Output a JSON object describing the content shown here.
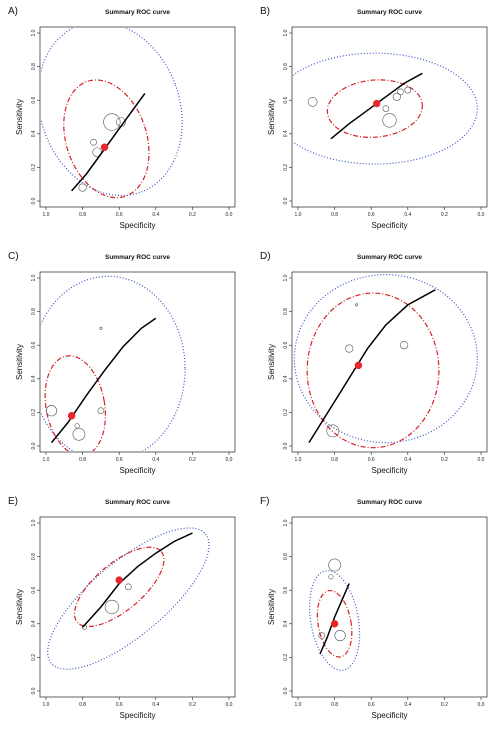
{
  "chart_data": [
    {
      "panel": "A)",
      "type": "scatter",
      "title": "Summary ROC curve",
      "xlabel": "Specificity",
      "ylabel": "Sensitivity",
      "xlim": [
        1.0,
        0.0
      ],
      "ylim": [
        0.0,
        1.0
      ],
      "xticks": [
        "1.0",
        "0.8",
        "0.6",
        "0.4",
        "0.2",
        "0.0"
      ],
      "yticks": [
        "0.0",
        "0.2",
        "0.4",
        "0.6",
        "0.8",
        "1.0"
      ],
      "curve": [
        [
          0.86,
          0.06
        ],
        [
          0.78,
          0.16
        ],
        [
          0.7,
          0.28
        ],
        [
          0.62,
          0.4
        ],
        [
          0.54,
          0.52
        ],
        [
          0.46,
          0.64
        ]
      ],
      "summary_point": [
        0.68,
        0.32
      ],
      "confidence_region": {
        "center": [
          0.67,
          0.37
        ],
        "rx": 0.22,
        "ry": 0.36,
        "angle": -18
      },
      "prediction_region": {
        "center": [
          0.65,
          0.55
        ],
        "rx": 0.38,
        "ry": 0.53,
        "angle": -20
      },
      "studies": [
        [
          0.64,
          0.47,
          0.055
        ],
        [
          0.72,
          0.29,
          0.03
        ],
        [
          0.59,
          0.47,
          0.03
        ],
        [
          0.8,
          0.08,
          0.025
        ],
        [
          0.74,
          0.35,
          0.02
        ]
      ]
    },
    {
      "panel": "B)",
      "type": "scatter",
      "title": "Summary ROC curve",
      "xlabel": "Specificity",
      "ylabel": "Sensitivity",
      "xlim": [
        1.0,
        0.0
      ],
      "ylim": [
        0.0,
        1.0
      ],
      "xticks": [
        "1.0",
        "0.8",
        "0.6",
        "0.4",
        "0.2",
        "0.0"
      ],
      "yticks": [
        "0.0",
        "0.2",
        "0.4",
        "0.6",
        "0.8",
        "1.0"
      ],
      "curve": [
        [
          0.82,
          0.37
        ],
        [
          0.72,
          0.46
        ],
        [
          0.62,
          0.54
        ],
        [
          0.52,
          0.62
        ],
        [
          0.42,
          0.7
        ],
        [
          0.32,
          0.76
        ]
      ],
      "summary_point": [
        0.57,
        0.58
      ],
      "confidence_region": {
        "center": [
          0.58,
          0.55
        ],
        "rx": 0.26,
        "ry": 0.17,
        "angle": -5
      },
      "prediction_region": {
        "center": [
          0.58,
          0.55
        ],
        "rx": 0.56,
        "ry": 0.33,
        "angle": 0
      },
      "studies": [
        [
          0.92,
          0.59,
          0.03
        ],
        [
          0.5,
          0.48,
          0.045
        ],
        [
          0.46,
          0.62,
          0.025
        ],
        [
          0.44,
          0.65,
          0.02
        ],
        [
          0.52,
          0.55,
          0.02
        ],
        [
          0.4,
          0.66,
          0.02
        ]
      ]
    },
    {
      "panel": "C)",
      "type": "scatter",
      "title": "Summary ROC curve",
      "xlabel": "Specificity",
      "ylabel": "Sensitivity",
      "xlim": [
        1.0,
        0.0
      ],
      "ylim": [
        0.0,
        1.0
      ],
      "xticks": [
        "1.0",
        "0.8",
        "0.6",
        "0.4",
        "0.2",
        "0.0"
      ],
      "yticks": [
        "0.0",
        "0.2",
        "0.4",
        "0.6",
        "0.8",
        "1.0"
      ],
      "curve": [
        [
          0.97,
          0.02
        ],
        [
          0.88,
          0.14
        ],
        [
          0.78,
          0.3
        ],
        [
          0.68,
          0.45
        ],
        [
          0.58,
          0.59
        ],
        [
          0.48,
          0.7
        ],
        [
          0.4,
          0.76
        ]
      ],
      "summary_point": [
        0.86,
        0.18
      ],
      "confidence_region": {
        "center": [
          0.84,
          0.24
        ],
        "rx": 0.16,
        "ry": 0.3,
        "angle": -10
      },
      "prediction_region": {
        "center": [
          0.66,
          0.46
        ],
        "rx": 0.42,
        "ry": 0.55,
        "angle": 0
      },
      "studies": [
        [
          0.97,
          0.21,
          0.035
        ],
        [
          0.82,
          0.07,
          0.04
        ],
        [
          0.7,
          0.21,
          0.02
        ],
        [
          0.83,
          0.12,
          0.015
        ],
        [
          0.7,
          0.7,
          0.008
        ]
      ]
    },
    {
      "panel": "D)",
      "type": "scatter",
      "title": "Summary ROC curve",
      "xlabel": "Specificity",
      "ylabel": "Sensitivity",
      "xlim": [
        1.0,
        0.0
      ],
      "ylim": [
        0.0,
        1.0
      ],
      "xticks": [
        "1.0",
        "0.8",
        "0.6",
        "0.4",
        "0.2",
        "0.0"
      ],
      "yticks": [
        "0.0",
        "0.2",
        "0.4",
        "0.6",
        "0.8",
        "1.0"
      ],
      "curve": [
        [
          0.94,
          0.02
        ],
        [
          0.86,
          0.16
        ],
        [
          0.78,
          0.3
        ],
        [
          0.7,
          0.44
        ],
        [
          0.62,
          0.58
        ],
        [
          0.52,
          0.72
        ],
        [
          0.4,
          0.84
        ],
        [
          0.25,
          0.93
        ]
      ],
      "summary_point": [
        0.67,
        0.48
      ],
      "confidence_region": {
        "center": [
          0.59,
          0.45
        ],
        "rx": 0.36,
        "ry": 0.46,
        "angle": 0
      },
      "prediction_region": {
        "center": [
          0.52,
          0.52
        ],
        "rx": 0.5,
        "ry": 0.5,
        "angle": 0
      },
      "studies": [
        [
          0.81,
          0.09,
          0.04
        ],
        [
          0.72,
          0.58,
          0.025
        ],
        [
          0.42,
          0.6,
          0.025
        ],
        [
          0.68,
          0.84,
          0.006
        ]
      ]
    },
    {
      "panel": "E)",
      "type": "scatter",
      "title": "Summary ROC curve",
      "xlabel": "Specificity",
      "ylabel": "Sensitivity",
      "xlim": [
        1.0,
        0.0
      ],
      "ylim": [
        0.0,
        1.0
      ],
      "xticks": [
        "1.0",
        "0.8",
        "0.6",
        "0.4",
        "0.2",
        "0.0"
      ],
      "yticks": [
        "0.0",
        "0.2",
        "0.4",
        "0.6",
        "0.8",
        "1.0"
      ],
      "curve": [
        [
          0.8,
          0.38
        ],
        [
          0.7,
          0.5
        ],
        [
          0.6,
          0.64
        ],
        [
          0.5,
          0.74
        ],
        [
          0.4,
          0.82
        ],
        [
          0.3,
          0.89
        ],
        [
          0.2,
          0.94
        ]
      ],
      "summary_point": [
        0.6,
        0.66
      ],
      "confidence_region": {
        "center": [
          0.6,
          0.62
        ],
        "rx": 0.3,
        "ry": 0.14,
        "angle": -40
      },
      "prediction_region": {
        "center": [
          0.55,
          0.55
        ],
        "rx": 0.55,
        "ry": 0.22,
        "angle": -40
      },
      "studies": [
        [
          0.64,
          0.5,
          0.045
        ],
        [
          0.55,
          0.62,
          0.02
        ],
        [
          0.79,
          0.38,
          0.015
        ]
      ]
    },
    {
      "panel": "F)",
      "type": "scatter",
      "title": "Summary ROC curve",
      "xlabel": "Specificity",
      "ylabel": "Sensitivity",
      "xlim": [
        1.0,
        0.0
      ],
      "ylim": [
        0.0,
        1.0
      ],
      "xticks": [
        "1.0",
        "0.8",
        "0.6",
        "0.4",
        "0.2",
        "0.0"
      ],
      "yticks": [
        "0.0",
        "0.2",
        "0.4",
        "0.6",
        "0.8",
        "1.0"
      ],
      "curve": [
        [
          0.88,
          0.22
        ],
        [
          0.84,
          0.32
        ],
        [
          0.8,
          0.44
        ],
        [
          0.76,
          0.54
        ],
        [
          0.72,
          0.64
        ]
      ],
      "summary_point": [
        0.8,
        0.4
      ],
      "confidence_region": {
        "center": [
          0.8,
          0.4
        ],
        "rx": 0.09,
        "ry": 0.2,
        "angle": -10
      },
      "prediction_region": {
        "center": [
          0.8,
          0.42
        ],
        "rx": 0.13,
        "ry": 0.3,
        "angle": -10
      },
      "studies": [
        [
          0.8,
          0.75,
          0.04
        ],
        [
          0.77,
          0.33,
          0.035
        ],
        [
          0.87,
          0.33,
          0.02
        ],
        [
          0.82,
          0.68,
          0.015
        ]
      ]
    }
  ],
  "colors": {
    "curve": "#000000",
    "summary": "#e8262b",
    "confidence": "#d4232a",
    "prediction": "#3a56c6",
    "study": "#555555"
  }
}
